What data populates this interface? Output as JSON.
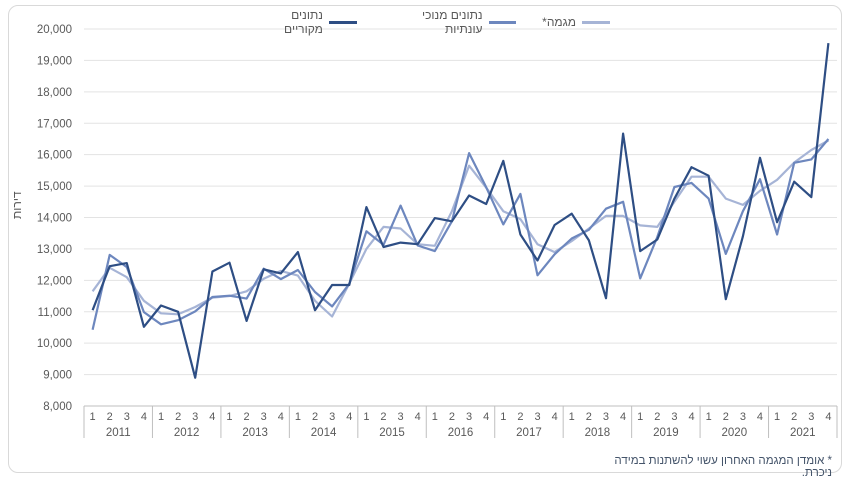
{
  "chart_data": {
    "type": "line",
    "ylabel": "דירות",
    "ylim": [
      8000,
      20000
    ],
    "yticks": [
      "8,000",
      "9,000",
      "10,000",
      "11,000",
      "12,000",
      "13,000",
      "14,000",
      "15,000",
      "16,000",
      "17,000",
      "18,000",
      "19,000",
      "20,000"
    ],
    "quarters": [
      "1",
      "2",
      "3",
      "4"
    ],
    "years": [
      "2011",
      "2012",
      "2013",
      "2014",
      "2015",
      "2016",
      "2017",
      "2018",
      "2019",
      "2020",
      "2021"
    ],
    "series": [
      {
        "name": "נתונים מקוריים",
        "color": "#2e4e84",
        "values": [
          11050,
          12450,
          12550,
          10520,
          11200,
          11000,
          8900,
          12280,
          12560,
          10710,
          12350,
          12220,
          12900,
          11050,
          11850,
          11850,
          14330,
          13060,
          13200,
          13150,
          13980,
          13880,
          14700,
          14430,
          15800,
          13460,
          12630,
          13760,
          14120,
          13270,
          11430,
          16670,
          12930,
          13300,
          14600,
          15600,
          15330,
          11400,
          13400,
          15900,
          13850,
          15140,
          14650,
          19550
        ]
      },
      {
        "name": "נתונים מנוכי עונתיות",
        "color": "#6d87be",
        "values": [
          10430,
          12810,
          12420,
          10990,
          10600,
          10730,
          11010,
          11470,
          11510,
          11420,
          12370,
          12040,
          12330,
          11630,
          11170,
          11890,
          13560,
          13130,
          14380,
          13110,
          12930,
          13880,
          16050,
          14960,
          13780,
          14750,
          12160,
          12830,
          13330,
          13610,
          14280,
          14500,
          12060,
          13380,
          14970,
          15100,
          14600,
          12840,
          14200,
          15220,
          13460,
          15740,
          15850,
          16500
        ]
      },
      {
        "name": "מגמה*",
        "color": "#a6b4d6",
        "values": [
          11650,
          12400,
          12100,
          11350,
          10950,
          10920,
          11150,
          11450,
          11500,
          11650,
          12050,
          12300,
          12150,
          11350,
          10850,
          11900,
          13000,
          13700,
          13650,
          13150,
          13100,
          14200,
          15650,
          14950,
          14200,
          13950,
          13150,
          12900,
          13250,
          13650,
          14050,
          14050,
          13750,
          13700,
          14500,
          15300,
          15300,
          14600,
          14400,
          14850,
          15200,
          15750,
          16150,
          16450
        ]
      }
    ],
    "grid": "horizontal",
    "legend": "top"
  },
  "footnote": "* אומדן המגמה האחרון עשוי להשתנות במידה ניכרת."
}
